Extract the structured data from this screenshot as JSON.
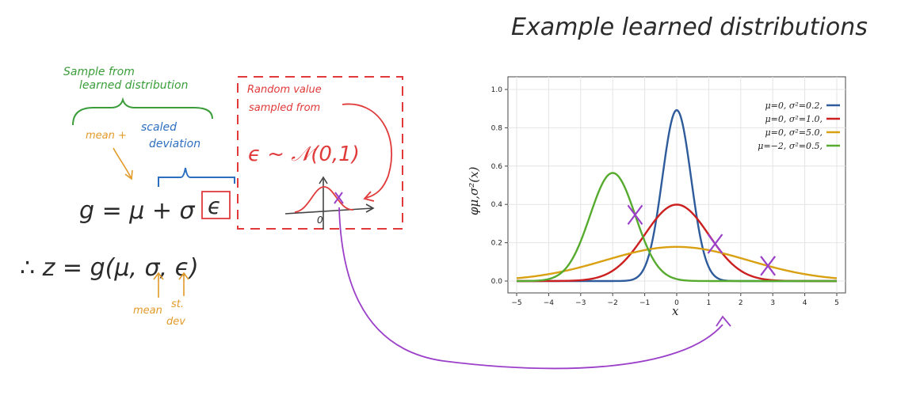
{
  "title": "Example learned distributions",
  "annotations": {
    "sample_from": "Sample from",
    "learned_distribution": "learned distribution",
    "mean_plus": "mean +",
    "scaled": "scaled",
    "deviation": "deviation",
    "eq1": "g = μ + σ",
    "eq1_eps": "ϵ",
    "eq2": "∴ z = g(μ, σ, ϵ)",
    "mean": "mean",
    "st": "st.",
    "dev": "dev",
    "random_value": "Random value",
    "sampled_from": "sampled from",
    "eps_dist": "ϵ ~ 𝒩(0,1)",
    "mini_zero": "0"
  },
  "colors": {
    "green": "#3a9d3a",
    "orange": "#e39a2a",
    "blue": "#2c6fc0",
    "red": "#e03a3a",
    "purple": "#9b3fc9",
    "curve_blue": "#2d5b9b",
    "curve_red": "#cc1f1f",
    "curve_orange": "#d9a012",
    "curve_green": "#56ab2f"
  },
  "chart_data": {
    "type": "line",
    "title": "",
    "xlabel": "x",
    "ylabel": "φμ,σ²(x)",
    "xlim": [
      -5,
      5
    ],
    "ylim": [
      0.0,
      1.0
    ],
    "xticks": [
      "−5",
      "−4",
      "−3",
      "−2",
      "−1",
      "0",
      "1",
      "2",
      "3",
      "4",
      "5"
    ],
    "yticks": [
      "0.0",
      "0.2",
      "0.4",
      "0.6",
      "0.8",
      "1.0"
    ],
    "grid": true,
    "legend_position": "top-right",
    "series": [
      {
        "name": "μ=0,   σ²=0.2,",
        "mu": 0,
        "variance": 0.2,
        "color": "#2d5b9b"
      },
      {
        "name": "μ=0,   σ²=1.0,",
        "mu": 0,
        "variance": 1.0,
        "color": "#cc1f1f"
      },
      {
        "name": "μ=0,   σ²=5.0,",
        "mu": 0,
        "variance": 5.0,
        "color": "#d9a012"
      },
      {
        "name": "μ=−2, σ²=0.5,",
        "mu": -2,
        "variance": 0.5,
        "color": "#56ab2f"
      }
    ],
    "sample_marks": [
      {
        "x": -1.3,
        "series": 3
      },
      {
        "x": 1.2,
        "series": 1
      },
      {
        "x": 2.85,
        "series": 2
      }
    ]
  }
}
